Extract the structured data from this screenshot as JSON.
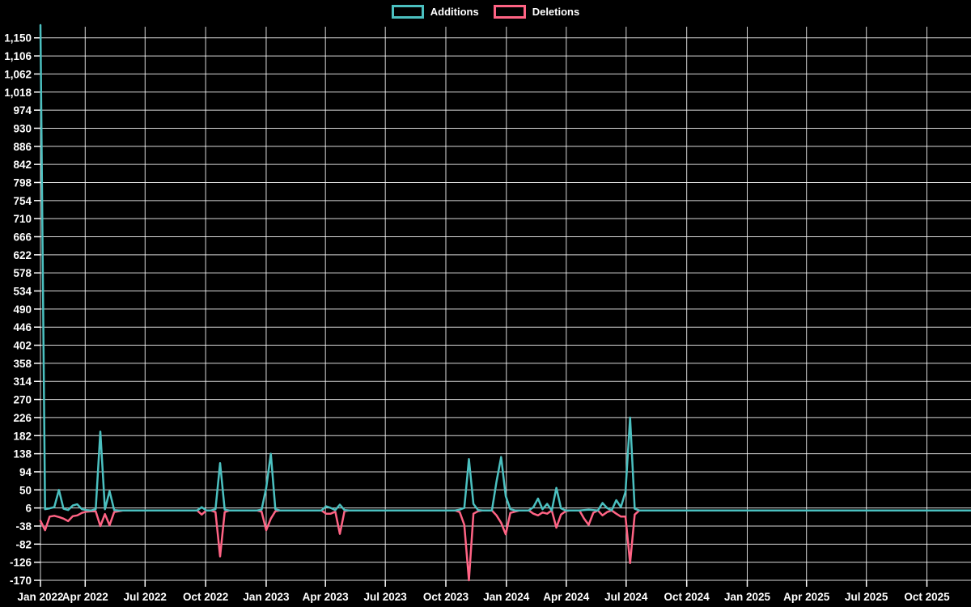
{
  "page": {
    "background": "#000000"
  },
  "chart_data": {
    "type": "line",
    "title": "",
    "legend_position": "top",
    "background": "#000000",
    "grid_color": "#ffffff",
    "text_color": "#ffffff",
    "x_axis": {
      "unit": "week",
      "start_date": "2022-01-23",
      "end_date": "2025-12-07",
      "total_weeks": 203,
      "ticks": [
        {
          "label": "Jan 2022",
          "week": 0
        },
        {
          "label": "Apr 2022",
          "week": 9.71
        },
        {
          "label": "Jul 2022",
          "week": 22.71
        },
        {
          "label": "Oct 2022",
          "week": 35.86
        },
        {
          "label": "Jan 2023",
          "week": 49
        },
        {
          "label": "Apr 2023",
          "week": 61.86
        },
        {
          "label": "Jul 2023",
          "week": 74.86
        },
        {
          "label": "Oct 2023",
          "week": 88
        },
        {
          "label": "Jan 2024",
          "week": 101.14
        },
        {
          "label": "Apr 2024",
          "week": 114.14
        },
        {
          "label": "Jul 2024",
          "week": 127.14
        },
        {
          "label": "Oct 2024",
          "week": 140.29
        },
        {
          "label": "Jan 2025",
          "week": 153.43
        },
        {
          "label": "Apr 2025",
          "week": 166.29
        },
        {
          "label": "Jul 2025",
          "week": 179.29
        },
        {
          "label": "Oct 2025",
          "week": 192.43
        }
      ]
    },
    "y_axis": {
      "min": -170,
      "max": 1181,
      "grid": true,
      "ticks": [
        1150,
        1106,
        1062,
        1018,
        974,
        930,
        886,
        842,
        798,
        754,
        710,
        666,
        622,
        578,
        534,
        490,
        446,
        402,
        358,
        314,
        270,
        226,
        182,
        138,
        94,
        50,
        6,
        -38,
        -82,
        -126,
        -170
      ]
    },
    "series": [
      {
        "name": "Additions",
        "color": "#4bc0c0",
        "default": 0,
        "values_by_week": {
          "0": 1181,
          "1": 3,
          "2": 5,
          "3": 8,
          "4": 50,
          "5": 4,
          "6": 1,
          "7": 12,
          "8": 15,
          "9": 3,
          "10": 1,
          "12": 3,
          "13": 192,
          "14": 3,
          "15": 47,
          "16": 1,
          "35": 8,
          "38": 3,
          "39": 115,
          "40": 2,
          "48": 2,
          "49": 55,
          "50": 138,
          "51": 3,
          "62": 10,
          "63": 6,
          "64": 1,
          "65": 14,
          "66": 1,
          "91": 2,
          "92": 6,
          "93": 125,
          "94": 16,
          "95": 1,
          "99": 70,
          "100": 130,
          "101": 35,
          "102": 3,
          "107": 8,
          "108": 29,
          "109": 3,
          "110": 16,
          "112": 55,
          "113": 5,
          "118": 1,
          "119": 2,
          "120": 1,
          "122": 18,
          "123": 6,
          "125": 25,
          "126": 8,
          "127": 45,
          "128": 226,
          "129": 4
        }
      },
      {
        "name": "Deletions",
        "color": "#ff6384",
        "default": 0,
        "values_by_week": {
          "0": -25,
          "1": -48,
          "2": -15,
          "3": -13,
          "4": -16,
          "5": -20,
          "6": -26,
          "7": -14,
          "8": -12,
          "9": -6,
          "10": -3,
          "11": -2,
          "12": -2,
          "13": -38,
          "14": -9,
          "15": -36,
          "16": -4,
          "17": -2,
          "35": -10,
          "38": -4,
          "39": -112,
          "40": -4,
          "48": -3,
          "49": -48,
          "50": -20,
          "51": -2,
          "62": -8,
          "63": -8,
          "64": -3,
          "65": -57,
          "66": -2,
          "91": -4,
          "92": -35,
          "93": -170,
          "94": -8,
          "95": -2,
          "99": -12,
          "100": -30,
          "101": -58,
          "102": -6,
          "103": -3,
          "107": -8,
          "108": -12,
          "109": -5,
          "110": -8,
          "112": -42,
          "113": -10,
          "114": -2,
          "118": -20,
          "119": -35,
          "120": -6,
          "122": -12,
          "123": -4,
          "125": -8,
          "126": -15,
          "127": -15,
          "128": -128,
          "129": -10
        }
      }
    ]
  }
}
